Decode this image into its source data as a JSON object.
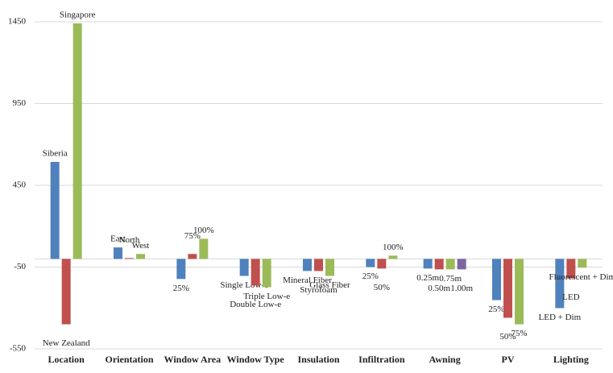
{
  "chart_data": {
    "type": "bar",
    "colors": [
      "#4f81bd",
      "#c0504d",
      "#9bbb59",
      "#8064a2"
    ],
    "ylim": [
      -550,
      1450
    ],
    "yticks": [
      -550,
      -50,
      450,
      950,
      1450
    ],
    "grid": true,
    "groups": [
      {
        "category": "Location",
        "bars": [
          {
            "label": "Siberia",
            "value": 593
          },
          {
            "label": "New Zealand",
            "value": -400
          },
          {
            "label": "Singapore",
            "value": 1440
          }
        ]
      },
      {
        "category": "Orientation",
        "bars": [
          {
            "label": "East",
            "value": 70
          },
          {
            "label": "North",
            "value": 5
          },
          {
            "label": "West",
            "value": 30
          }
        ]
      },
      {
        "category": "Window Area",
        "bars": [
          {
            "label": "25%",
            "value": -123
          },
          {
            "label": "75%",
            "value": 30
          },
          {
            "label": "100%",
            "value": 123
          }
        ]
      },
      {
        "category": "Window Type",
        "bars": [
          {
            "label": "Single Low-e",
            "value": -104
          },
          {
            "label": "Double Low-e",
            "value": -163
          },
          {
            "label": "Triple Low-e",
            "value": -173
          }
        ]
      },
      {
        "category": "Insulation",
        "bars": [
          {
            "label": "Mineral Fiber",
            "value": -74
          },
          {
            "label": "Styrofoam",
            "value": -74
          },
          {
            "label": "Glass Fiber",
            "value": -104
          }
        ]
      },
      {
        "category": "Infiltration",
        "bars": [
          {
            "label": "25%",
            "value": -50
          },
          {
            "label": "50%",
            "value": -59
          },
          {
            "label": "100%",
            "value": 20
          }
        ]
      },
      {
        "category": "Awning",
        "bars": [
          {
            "label": "0.25m",
            "value": -59
          },
          {
            "label": "0.50m",
            "value": -64
          },
          {
            "label": "0.75m",
            "value": -64
          },
          {
            "label": "1.00m",
            "value": -64
          }
        ]
      },
      {
        "category": "PV",
        "bars": [
          {
            "label": "25%",
            "value": -252
          },
          {
            "label": "50%",
            "value": -360
          },
          {
            "label": "75%",
            "value": -400
          }
        ]
      },
      {
        "category": "Lighting",
        "bars": [
          {
            "label": "LED + Dim",
            "value": -301
          },
          {
            "label": "LED",
            "value": -119
          },
          {
            "label": "Fluorescent + Dim",
            "value": -54
          }
        ]
      }
    ]
  }
}
